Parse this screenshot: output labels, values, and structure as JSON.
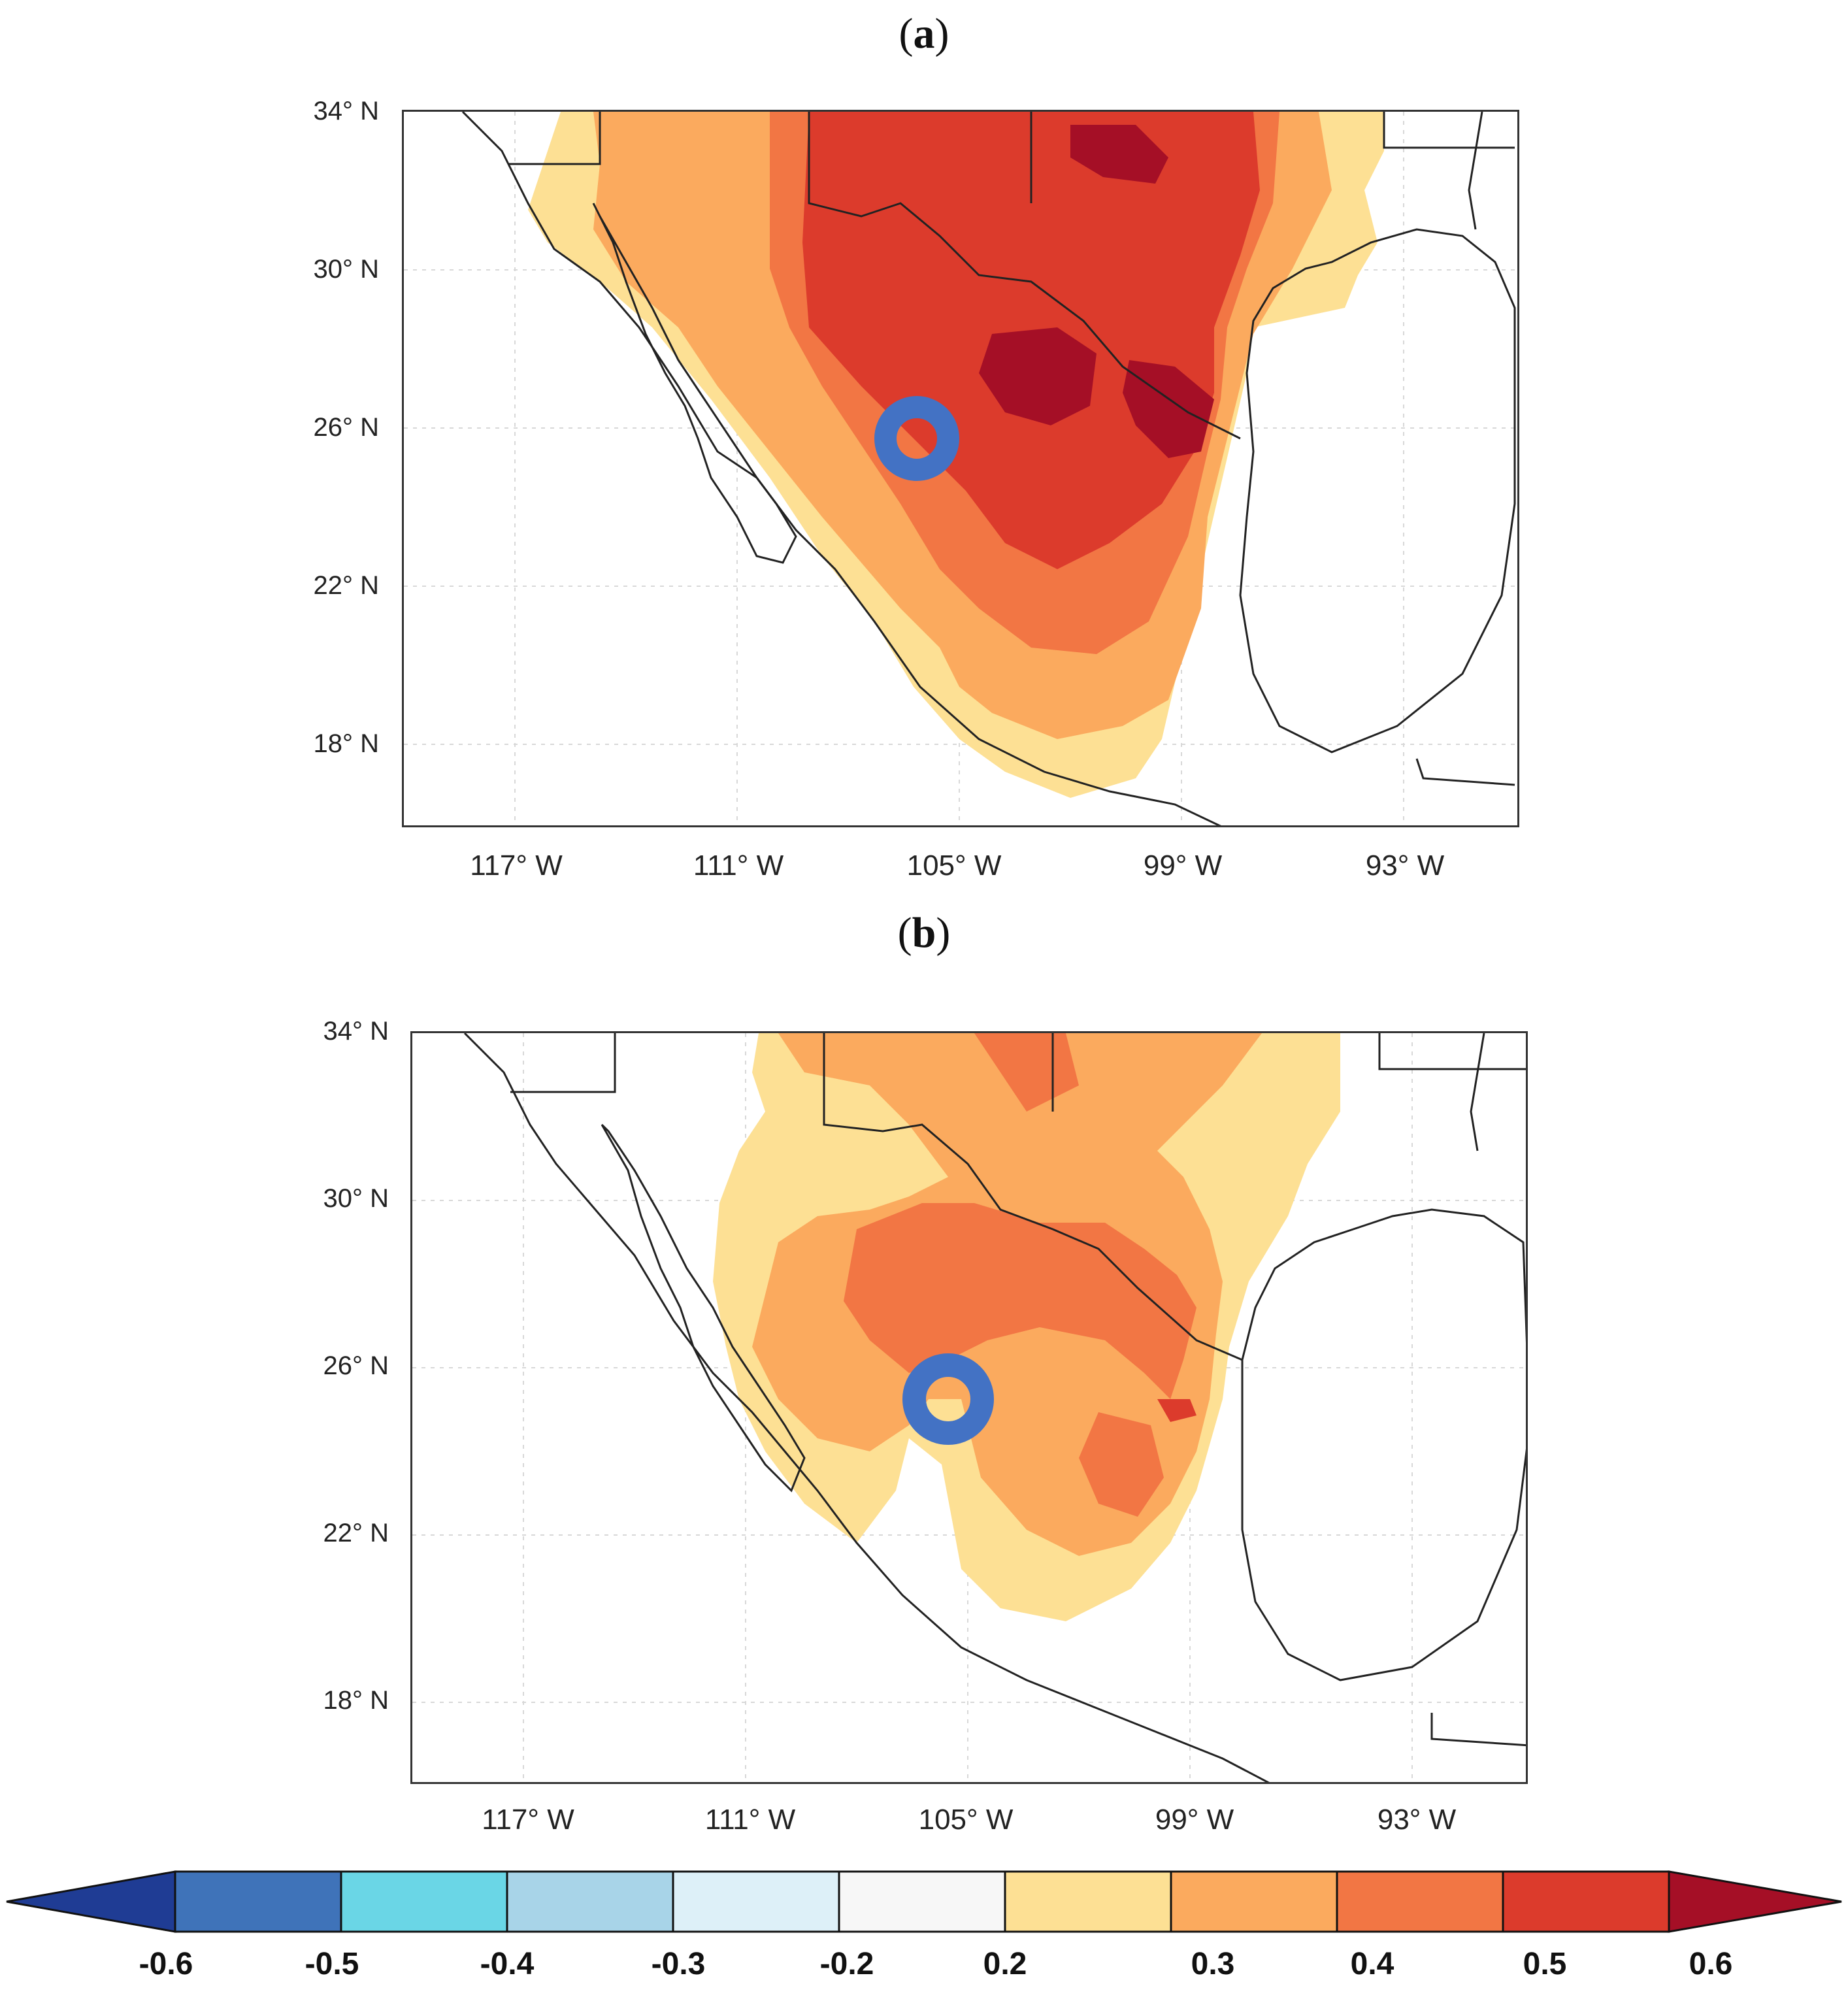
{
  "figure": {
    "panels": [
      {
        "id": "a",
        "label_open": "(",
        "label_letter": "a",
        "label_close": ")",
        "y_ticks": [
          "34° N",
          "30° N",
          "26° N",
          "22° N",
          "18° N"
        ],
        "x_ticks": [
          "117° W",
          "111° W",
          "105° W",
          "99° W",
          "93° W"
        ],
        "marker": {
          "name": "station-ring",
          "lon": -106.2,
          "lat": 25.9
        }
      },
      {
        "id": "b",
        "label_open": "(",
        "label_letter": "b",
        "label_close": ")",
        "y_ticks": [
          "34° N",
          "30° N",
          "26° N",
          "22° N",
          "18° N"
        ],
        "x_ticks": [
          "117° W",
          "111° W",
          "105° W",
          "99° W",
          "93° W"
        ],
        "marker": {
          "name": "station-ring",
          "lon": -105.5,
          "lat": 25.4
        }
      }
    ]
  },
  "colorbar": {
    "tick_labels": [
      "-0.6",
      "-0.5",
      "-0.4",
      "-0.3",
      "-0.2",
      "0.2",
      "0.3",
      "0.4",
      "0.5",
      "0.6"
    ],
    "colors": {
      "lt_-0.6": "#1f3c94",
      "-0.6_-0.5": "#3f73b9",
      "-0.5_-0.4": "#6ad6e6",
      "-0.4_-0.3": "#a8d4e8",
      "-0.3_-0.2": "#ddf0f8",
      "-0.2_0.2": "#f7f7f7",
      "0.2_0.3": "#fde094",
      "0.3_0.4": "#fbaa5e",
      "0.4_0.5": "#f27644",
      "0.5_0.6": "#dc3b2c",
      "gt_0.6": "#a50f26"
    },
    "marker_color": "#4372c4"
  }
}
